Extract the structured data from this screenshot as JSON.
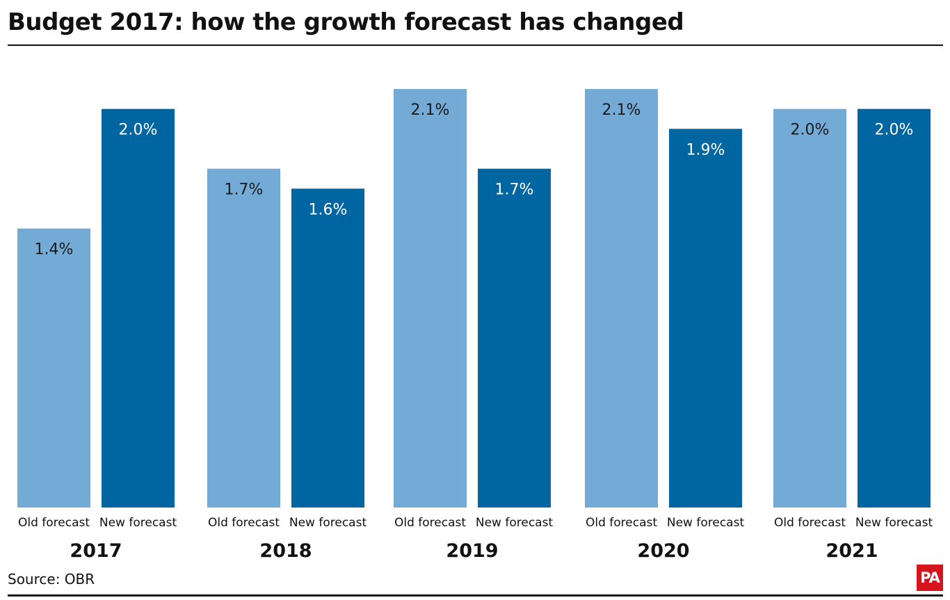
{
  "title": "Budget 2017: how the growth forecast has changed",
  "source": "Source: OBR",
  "logo_text": "PA",
  "colors": {
    "old": "#73aad6",
    "new": "#0066a1",
    "text_on_old": "#1a1a1a",
    "text_on_new": "#ffffff"
  },
  "chart_data": {
    "type": "bar",
    "title": "Budget 2017: how the growth forecast has changed",
    "categories": [
      "2017",
      "2018",
      "2019",
      "2020",
      "2021"
    ],
    "series": [
      {
        "name": "Old forecast",
        "values": [
          1.4,
          1.7,
          2.1,
          2.1,
          2.0
        ],
        "labels": [
          "1.4%",
          "1.7%",
          "2.1%",
          "2.1%",
          "2.0%"
        ]
      },
      {
        "name": "New forecast",
        "values": [
          2.0,
          1.6,
          1.7,
          1.9,
          2.0
        ],
        "labels": [
          "2.0%",
          "1.6%",
          "1.7%",
          "1.9%",
          "2.0%"
        ]
      }
    ],
    "ylim": [
      0,
      2.1
    ],
    "grid": false,
    "legend": "none",
    "xlabel": "",
    "ylabel": ""
  }
}
